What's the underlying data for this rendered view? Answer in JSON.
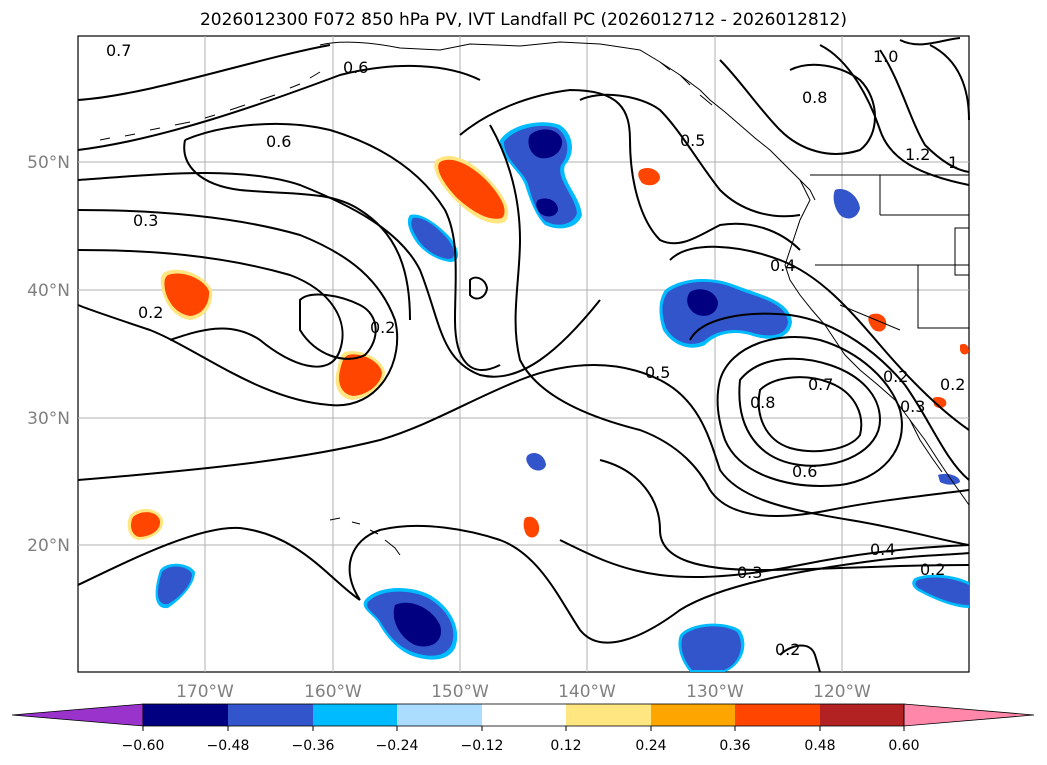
{
  "title": "2026012300 F072 850 hPa PV, IVT Landfall PC (2026012712 - 2026012812)",
  "lat_labels": [
    "50°N",
    "40°N",
    "30°N",
    "20°N"
  ],
  "lon_labels": [
    "170°W",
    "160°W",
    "150°W",
    "140°W",
    "130°W",
    "120°W"
  ],
  "contour_labels": [
    "0.7",
    "0.6",
    "0.6",
    "0.3",
    "0.2",
    "0.2",
    "0.5",
    "0.4",
    "0.8",
    "0.7",
    "0.6",
    "0.4",
    "0.3",
    "0.2",
    "0.2",
    "0.8",
    "1.0",
    "1.2",
    "1",
    "0.5",
    "0.2",
    "0.3",
    "0.2"
  ],
  "colorbar": {
    "ticks": [
      "−0.60",
      "−0.48",
      "−0.36",
      "−0.24",
      "−0.12",
      "0.12",
      "0.24",
      "0.36",
      "0.48",
      "0.60"
    ],
    "colors": [
      "#9933cc",
      "#000080",
      "#3355cc",
      "#00bbff",
      "#aaddff",
      "#ffffff",
      "#ffe680",
      "#ffa500",
      "#ff4500",
      "#b22222",
      "#ff88aa"
    ]
  },
  "colors": {
    "neg_strong": "#000080",
    "neg_mid": "#3355cc",
    "neg_light": "#00bbff",
    "pos_light": "#ffe680",
    "pos_mid": "#ffa500",
    "pos_strong": "#ff4500"
  }
}
